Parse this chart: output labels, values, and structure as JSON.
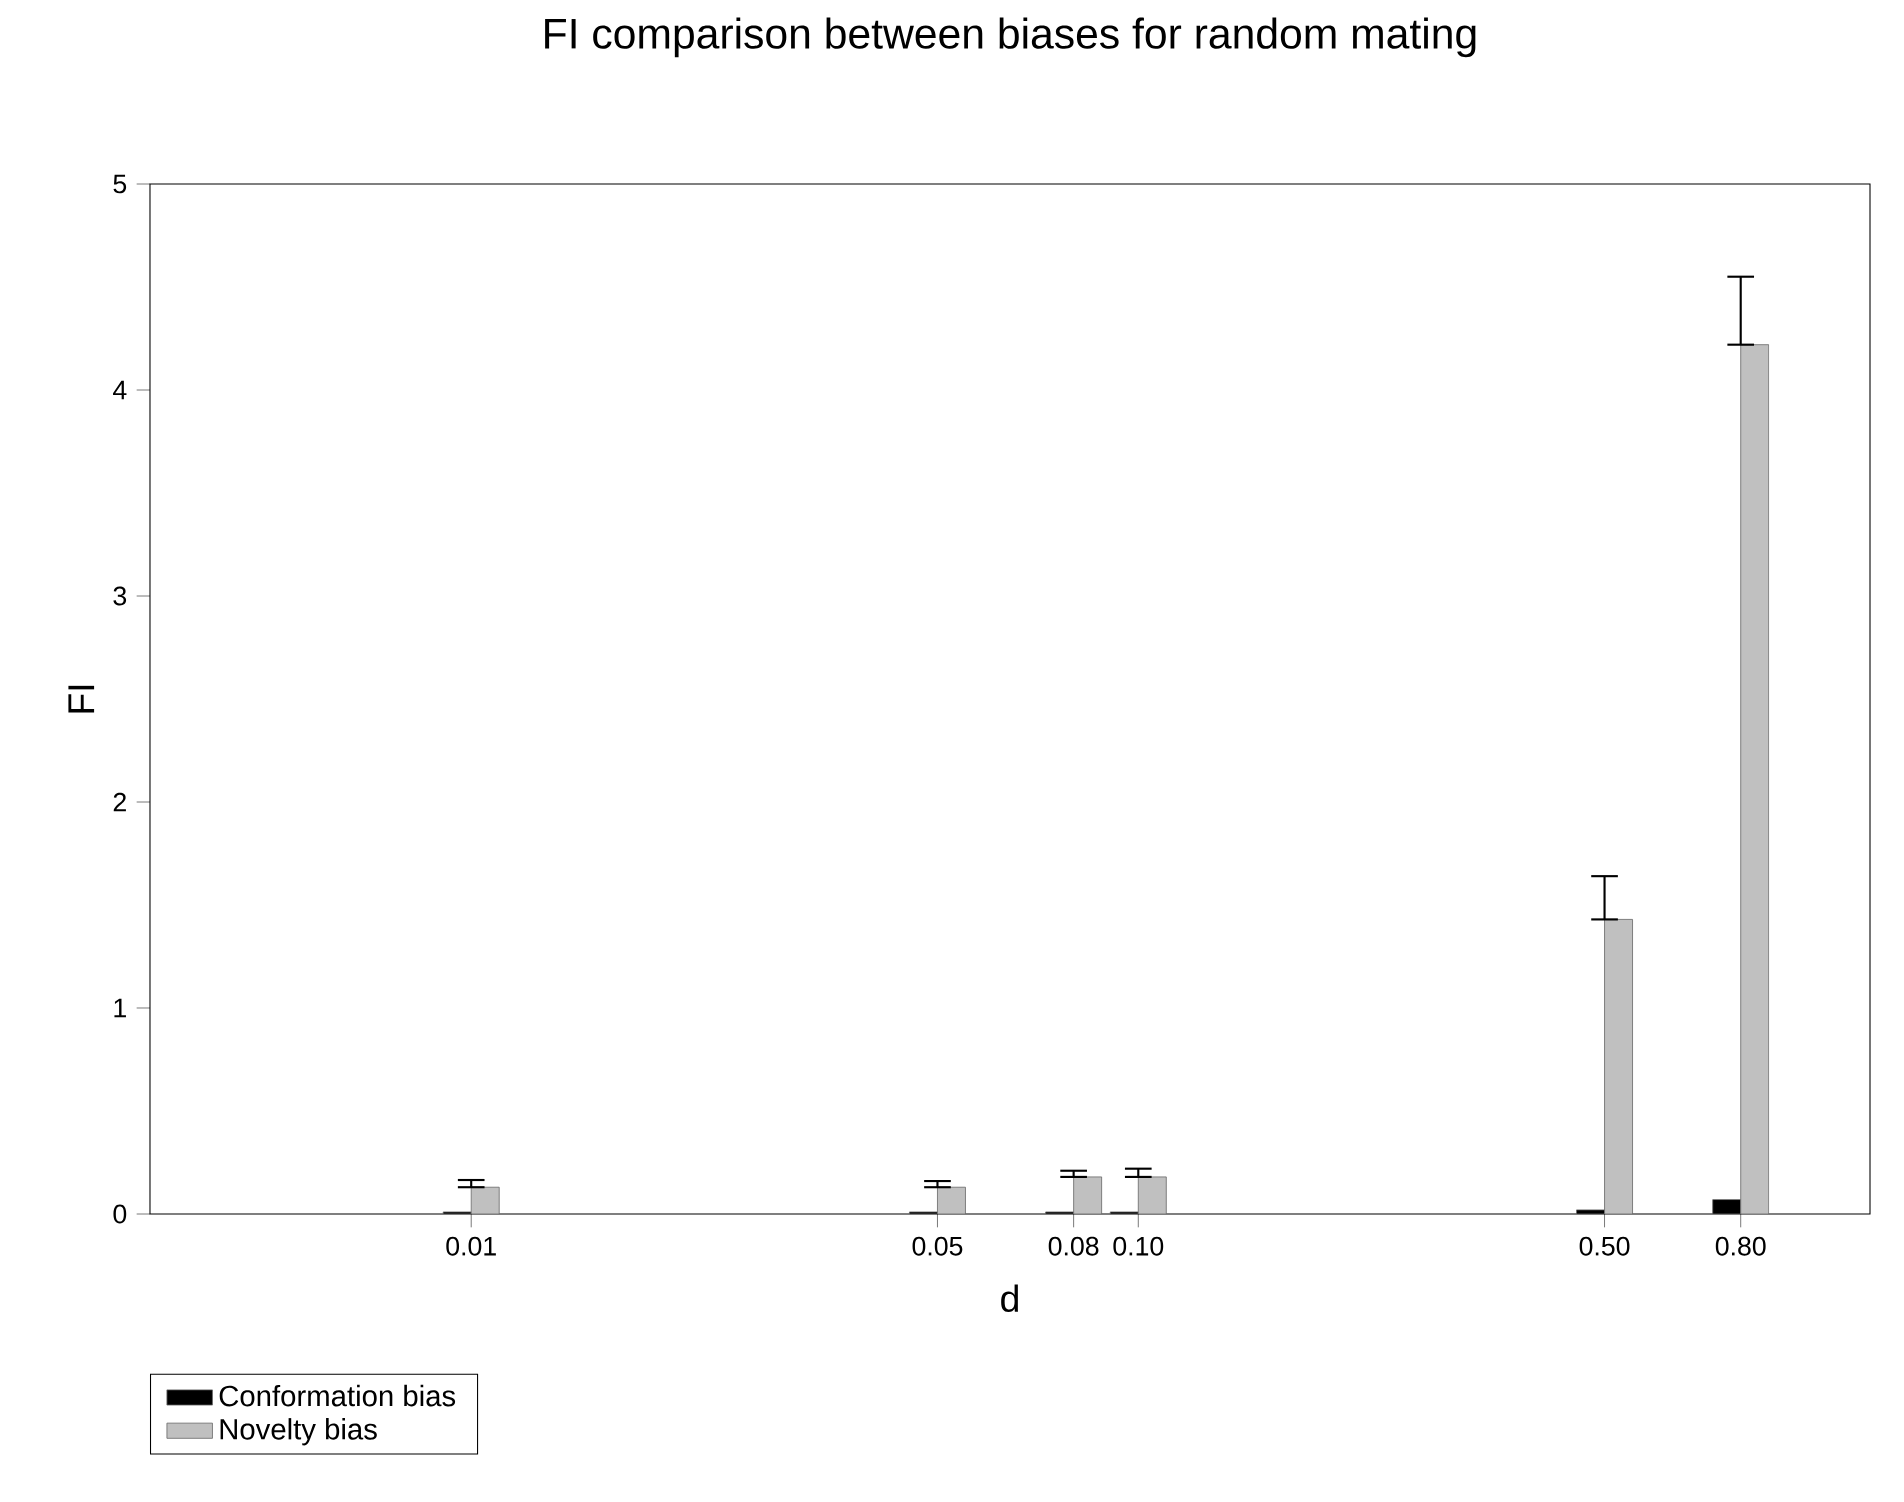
{
  "chart_data": {
    "type": "bar",
    "title": "FI comparison between biases for random mating",
    "xlabel": "d",
    "ylabel": "FI",
    "x": [
      0.01,
      0.05,
      0.08,
      0.1,
      0.5,
      0.8
    ],
    "log": "x",
    "xlim": [
      0.0033,
      1.25
    ],
    "xticks": [
      0.01,
      0.05,
      0.08,
      {
        "value": 0.1,
        "label": "0.10"
      },
      {
        "value": 0.5,
        "label": "0.50"
      },
      {
        "value": 0.8,
        "label": "0.80"
      }
    ],
    "ylim": [
      0,
      5
    ],
    "yticks": [
      0,
      1,
      2,
      3,
      4,
      5
    ],
    "series": [
      {
        "name": "Conformation bias",
        "color": "#000000",
        "values": [
          0.01,
          0.01,
          0.01,
          0.01,
          0.02,
          0.07
        ]
      },
      {
        "name": "Novelty bias",
        "color": "#c0c0c0",
        "values": [
          0.13,
          0.13,
          0.18,
          0.18,
          1.43,
          4.22
        ],
        "errors": [
          [
            0.13,
            0.165
          ],
          [
            0.13,
            0.16
          ],
          [
            0.18,
            0.21
          ],
          [
            0.18,
            0.22
          ],
          [
            1.43,
            1.64
          ],
          [
            4.22,
            4.55
          ]
        ]
      }
    ],
    "legend": "bottom left",
    "grid": false
  }
}
